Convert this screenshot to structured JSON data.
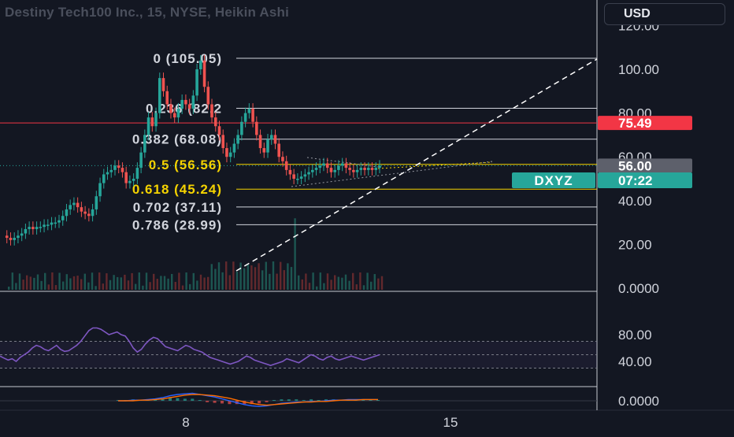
{
  "header": {
    "title": "Destiny Tech100 Inc., 15, NYSE, Heikin Ashi",
    "currency": "USD"
  },
  "colors": {
    "background": "#131722",
    "up": "#26a69a",
    "down": "#ef5350",
    "rsi_line": "#7e57c2",
    "macd_line": "#2962ff",
    "signal_line": "#ff6d00",
    "red_level": "#f23645",
    "fib_yellow": "#f5d300",
    "fib_white": "#d1d4dc"
  },
  "chart_data": [
    {
      "type": "candlestick",
      "title": "Destiny Tech100 Inc., 15, NYSE, Heikin Ashi",
      "y_ticks": [
        "120.00",
        "100.00",
        "80.00",
        "60.00",
        "40.00",
        "20.00",
        "0.0000"
      ],
      "ylim": [
        0,
        120
      ],
      "x_ticks": [
        "8",
        "15"
      ],
      "fib_levels": [
        {
          "label": "0 (105.05)",
          "value": 105.05,
          "color": "#d1d4dc"
        },
        {
          "label": "0.236 (82.2",
          "value": 82.2,
          "color": "#d1d4dc"
        },
        {
          "label": "0.382 (68.08)",
          "value": 68.08,
          "color": "#d1d4dc"
        },
        {
          "label": "0.5 (56.56)",
          "value": 56.56,
          "color": "#f5d300"
        },
        {
          "label": "0.618 (45.24)",
          "value": 45.24,
          "color": "#f5d300"
        },
        {
          "label": "0.702 (37.11)",
          "value": 37.11,
          "color": "#d1d4dc"
        },
        {
          "label": "0.786 (28.99)",
          "value": 28.99,
          "color": "#d1d4dc"
        }
      ],
      "price_labels": [
        {
          "text": "75.49",
          "value": 75.49,
          "bg": "#f23645",
          "fg": "#ffffff"
        },
        {
          "text": "56.00",
          "value": 56.0,
          "bg": "#5d606b",
          "fg": "#ffffff"
        }
      ],
      "symbol_tag": {
        "text": "DXYZ",
        "countdown": "07:22",
        "bg": "#26a69a"
      },
      "red_horizontal": 75.49,
      "last_price": 56.0,
      "closes": [
        24,
        23,
        22,
        23,
        24,
        25,
        27,
        28,
        27,
        28,
        28,
        29,
        29,
        30,
        30,
        31,
        33,
        36,
        38,
        39,
        37,
        35,
        34,
        33,
        36,
        42,
        48,
        52,
        53,
        54,
        56,
        55,
        53,
        48,
        49,
        50,
        55,
        62,
        70,
        78,
        74,
        80,
        96,
        90,
        84,
        80,
        78,
        82,
        86,
        84,
        82,
        88,
        100,
        104,
        92,
        84,
        78,
        74,
        70,
        64,
        60,
        62,
        66,
        70,
        76,
        80,
        82,
        76,
        70,
        64,
        62,
        68,
        70,
        66,
        60,
        58,
        54,
        52,
        50,
        50,
        51,
        52,
        53,
        54,
        55,
        56,
        57,
        55,
        53,
        54,
        56,
        57,
        55,
        54,
        53,
        54,
        55,
        54,
        55,
        54,
        55,
        56
      ],
      "rsi": {
        "ticks": [
          "80.00",
          "40.00"
        ],
        "ylim": [
          20,
          100
        ],
        "values": [
          48,
          45,
          42,
          44,
          40,
          46,
          50,
          54,
          60,
          64,
          62,
          58,
          56,
          60,
          64,
          58,
          55,
          56,
          60,
          64,
          70,
          78,
          86,
          90,
          90,
          88,
          84,
          80,
          82,
          84,
          80,
          78,
          70,
          60,
          54,
          58,
          66,
          72,
          76,
          74,
          68,
          62,
          60,
          58,
          56,
          60,
          64,
          62,
          58,
          56,
          54,
          50,
          46,
          44,
          42,
          40,
          38,
          36,
          38,
          40,
          44,
          48,
          46,
          42,
          40,
          38,
          36,
          34,
          36,
          38,
          40,
          44,
          42,
          40,
          38,
          42,
          46,
          50,
          48,
          44,
          42,
          46,
          48,
          44,
          42,
          44,
          46,
          48,
          46,
          44,
          42,
          44,
          46,
          48,
          50
        ]
      },
      "macd": {
        "ticks": [
          "0.0000"
        ],
        "values_macd": [
          0,
          0,
          0.1,
          0.1,
          0.2,
          0.3,
          0.5,
          0.8,
          1.0,
          1.1,
          1.2,
          1.0,
          0.8,
          0.6,
          0.3,
          0.0,
          -0.3,
          -0.6,
          -0.8,
          -0.9,
          -0.8,
          -0.6,
          -0.4,
          -0.3,
          -0.2,
          -0.2,
          -0.1,
          -0.1,
          0,
          0.1,
          0.1,
          0.2,
          0.2,
          0.2,
          0.2,
          0.2
        ],
        "values_signal": [
          0,
          0,
          0,
          0.1,
          0.1,
          0.2,
          0.3,
          0.5,
          0.7,
          0.9,
          1.0,
          1.0,
          0.9,
          0.8,
          0.6,
          0.4,
          0.1,
          -0.2,
          -0.4,
          -0.6,
          -0.7,
          -0.6,
          -0.5,
          -0.4,
          -0.3,
          -0.2,
          -0.2,
          -0.1,
          -0.1,
          0,
          0.1,
          0.1,
          0.1,
          0.2,
          0.2,
          0.2
        ]
      }
    }
  ]
}
